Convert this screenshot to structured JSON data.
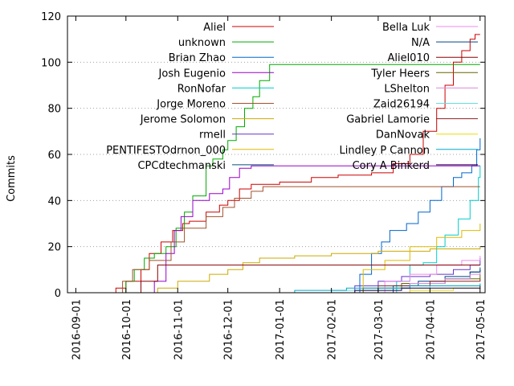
{
  "chart_data": {
    "type": "line",
    "title": "",
    "xlabel": "",
    "ylabel": "Commits",
    "ylim": [
      0,
      120
    ],
    "yticks": [
      "0",
      "20",
      "40",
      "60",
      "80",
      "100",
      "120"
    ],
    "xlim": [
      "2016-08-27",
      "2017-05-04"
    ],
    "xticks": [
      "2016-09-01",
      "2016-10-01",
      "2016-11-01",
      "2016-12-01",
      "2017-01-01",
      "2017-02-01",
      "2017-03-01",
      "2017-04-01",
      "2017-05-01"
    ],
    "grid": "horizontal-dotted",
    "legend_position": "top",
    "series": [
      {
        "name": "Aliel",
        "color": "#cc0000",
        "points": [
          [
            "2016-09-20",
            0
          ],
          [
            "2016-09-25",
            2
          ],
          [
            "2016-10-01",
            5
          ],
          [
            "2016-10-10",
            10
          ],
          [
            "2016-10-15",
            17
          ],
          [
            "2016-10-22",
            22
          ],
          [
            "2016-10-29",
            27
          ],
          [
            "2016-11-04",
            30
          ],
          [
            "2016-11-08",
            31
          ],
          [
            "2016-11-18",
            35
          ],
          [
            "2016-11-26",
            38
          ],
          [
            "2016-12-01",
            40
          ],
          [
            "2016-12-08",
            45
          ],
          [
            "2016-12-15",
            47
          ],
          [
            "2016-12-20",
            47
          ],
          [
            "2017-01-01",
            48
          ],
          [
            "2017-01-20",
            50
          ],
          [
            "2017-02-05",
            51
          ],
          [
            "2017-02-25",
            52
          ],
          [
            "2017-03-10",
            56
          ],
          [
            "2017-03-20",
            60
          ],
          [
            "2017-03-28",
            70
          ],
          [
            "2017-04-05",
            80
          ],
          [
            "2017-04-10",
            90
          ],
          [
            "2017-04-15",
            100
          ],
          [
            "2017-04-20",
            105
          ],
          [
            "2017-04-25",
            110
          ],
          [
            "2017-04-28",
            112
          ],
          [
            "2017-05-01",
            112
          ]
        ]
      },
      {
        "name": "unknown",
        "color": "#00aa00",
        "points": [
          [
            "2016-09-25",
            0
          ],
          [
            "2016-10-01",
            5
          ],
          [
            "2016-10-06",
            10
          ],
          [
            "2016-10-12",
            15
          ],
          [
            "2016-10-18",
            17
          ],
          [
            "2016-10-25",
            20
          ],
          [
            "2016-10-31",
            28
          ],
          [
            "2016-11-05",
            35
          ],
          [
            "2016-11-10",
            42
          ],
          [
            "2016-11-18",
            55
          ],
          [
            "2016-11-22",
            58
          ],
          [
            "2016-11-28",
            62
          ],
          [
            "2016-12-01",
            66
          ],
          [
            "2016-12-06",
            72
          ],
          [
            "2016-12-11",
            80
          ],
          [
            "2016-12-16",
            85
          ],
          [
            "2016-12-20",
            92
          ],
          [
            "2016-12-26",
            99
          ],
          [
            "2017-05-01",
            99
          ]
        ]
      },
      {
        "name": "Brian Zhao",
        "color": "#0066cc",
        "points": [
          [
            "2017-02-12",
            0
          ],
          [
            "2017-02-18",
            8
          ],
          [
            "2017-02-25",
            17
          ],
          [
            "2017-03-03",
            22
          ],
          [
            "2017-03-08",
            27
          ],
          [
            "2017-03-18",
            30
          ],
          [
            "2017-03-25",
            35
          ],
          [
            "2017-04-01",
            40
          ],
          [
            "2017-04-08",
            46
          ],
          [
            "2017-04-15",
            50
          ],
          [
            "2017-04-20",
            52
          ],
          [
            "2017-04-26",
            55
          ],
          [
            "2017-04-29",
            62
          ],
          [
            "2017-05-01",
            67
          ]
        ]
      },
      {
        "name": "Josh Eugenio",
        "color": "#9900cc",
        "points": [
          [
            "2016-10-10",
            0
          ],
          [
            "2016-10-18",
            5
          ],
          [
            "2016-10-25",
            17
          ],
          [
            "2016-10-30",
            27
          ],
          [
            "2016-11-03",
            33
          ],
          [
            "2016-11-10",
            40
          ],
          [
            "2016-11-20",
            43
          ],
          [
            "2016-11-28",
            45
          ],
          [
            "2016-12-02",
            50
          ],
          [
            "2016-12-08",
            54
          ],
          [
            "2016-12-15",
            55
          ],
          [
            "2017-05-01",
            55
          ]
        ]
      },
      {
        "name": "RonNofar",
        "color": "#00cccc",
        "points": [
          [
            "2017-03-08",
            0
          ],
          [
            "2017-03-12",
            5
          ],
          [
            "2017-03-20",
            12
          ],
          [
            "2017-03-28",
            13
          ],
          [
            "2017-04-05",
            20
          ],
          [
            "2017-04-10",
            25
          ],
          [
            "2017-04-18",
            32
          ],
          [
            "2017-04-25",
            40
          ],
          [
            "2017-04-30",
            50
          ],
          [
            "2017-05-01",
            55
          ]
        ]
      },
      {
        "name": "Jorge Moreno",
        "color": "#a0522d",
        "points": [
          [
            "2016-09-22",
            0
          ],
          [
            "2016-09-29",
            5
          ],
          [
            "2016-10-05",
            10
          ],
          [
            "2016-10-15",
            14
          ],
          [
            "2016-10-28",
            22
          ],
          [
            "2016-11-05",
            28
          ],
          [
            "2016-11-18",
            33
          ],
          [
            "2016-11-28",
            37
          ],
          [
            "2016-12-05",
            41
          ],
          [
            "2016-12-15",
            44
          ],
          [
            "2016-12-22",
            46
          ],
          [
            "2017-05-01",
            46
          ]
        ]
      },
      {
        "name": "Jerome Solomon",
        "color": "#ccaa00",
        "points": [
          [
            "2016-10-05",
            0
          ],
          [
            "2016-10-20",
            2
          ],
          [
            "2016-11-01",
            5
          ],
          [
            "2016-11-20",
            8
          ],
          [
            "2016-12-01",
            10
          ],
          [
            "2016-12-10",
            13
          ],
          [
            "2016-12-20",
            15
          ],
          [
            "2017-01-10",
            16
          ],
          [
            "2017-02-01",
            17
          ],
          [
            "2017-03-01",
            18
          ],
          [
            "2017-04-01",
            19
          ],
          [
            "2017-05-01",
            20
          ]
        ]
      },
      {
        "name": "rmell",
        "color": "#6633cc",
        "points": [
          [
            "2017-02-05",
            0
          ],
          [
            "2017-02-15",
            3
          ],
          [
            "2017-03-01",
            5
          ],
          [
            "2017-03-15",
            7
          ],
          [
            "2017-04-01",
            8
          ],
          [
            "2017-04-15",
            10
          ],
          [
            "2017-04-25",
            12
          ],
          [
            "2017-05-01",
            15
          ]
        ]
      },
      {
        "name": "PENTIFESTOdrnon_000",
        "color": "#ddbb00",
        "points": [
          [
            "2017-02-10",
            0
          ],
          [
            "2017-02-20",
            10
          ],
          [
            "2017-03-05",
            14
          ],
          [
            "2017-03-20",
            20
          ],
          [
            "2017-04-05",
            24
          ],
          [
            "2017-04-20",
            27
          ],
          [
            "2017-05-01",
            30
          ]
        ]
      },
      {
        "name": "CPCdtechmanski",
        "color": "#005577",
        "points": [
          [
            "2017-02-15",
            0
          ],
          [
            "2017-03-01",
            2
          ],
          [
            "2017-03-20",
            4
          ],
          [
            "2017-04-10",
            6
          ],
          [
            "2017-04-25",
            9
          ],
          [
            "2017-05-01",
            11
          ]
        ]
      },
      {
        "name": "Bella Luk",
        "color": "#ee88ee",
        "points": [
          [
            "2017-02-20",
            0
          ],
          [
            "2017-03-05",
            5
          ],
          [
            "2017-03-20",
            8
          ],
          [
            "2017-04-05",
            12
          ],
          [
            "2017-04-20",
            14
          ],
          [
            "2017-05-01",
            16
          ]
        ]
      },
      {
        "name": "N/A",
        "color": "#004488",
        "points": [
          [
            "2017-02-25",
            0
          ],
          [
            "2017-03-10",
            3
          ],
          [
            "2017-03-25",
            5
          ],
          [
            "2017-04-10",
            7
          ],
          [
            "2017-04-25",
            9
          ],
          [
            "2017-05-01",
            10
          ]
        ]
      },
      {
        "name": "Aliel010",
        "color": "#880000",
        "points": [
          [
            "2016-09-25",
            0
          ],
          [
            "2016-10-10",
            5
          ],
          [
            "2016-10-20",
            12
          ],
          [
            "2017-05-01",
            12
          ]
        ]
      },
      {
        "name": "Tyler Heers",
        "color": "#666600",
        "points": [
          [
            "2017-02-01",
            0
          ],
          [
            "2017-02-20",
            2
          ],
          [
            "2017-03-15",
            4
          ],
          [
            "2017-04-10",
            6
          ],
          [
            "2017-05-01",
            8
          ]
        ]
      },
      {
        "name": "LShelton",
        "color": "#dd88dd",
        "points": [
          [
            "2017-03-01",
            0
          ],
          [
            "2017-03-20",
            4
          ],
          [
            "2017-04-10",
            6
          ],
          [
            "2017-04-25",
            8
          ],
          [
            "2017-05-01",
            9
          ]
        ]
      },
      {
        "name": "Zaid26194",
        "color": "#66dddd",
        "points": [
          [
            "2017-01-01",
            0
          ],
          [
            "2017-02-01",
            1
          ],
          [
            "2017-03-01",
            2
          ],
          [
            "2017-04-01",
            3
          ],
          [
            "2017-05-01",
            4
          ]
        ]
      },
      {
        "name": "Gabriel Lamorie",
        "color": "#882222",
        "points": [
          [
            "2017-02-05",
            0
          ],
          [
            "2017-03-01",
            3
          ],
          [
            "2017-04-01",
            5
          ],
          [
            "2017-05-01",
            6
          ]
        ]
      },
      {
        "name": "DanNovak",
        "color": "#eedd00",
        "points": [
          [
            "2017-03-01",
            0
          ],
          [
            "2017-03-20",
            1
          ],
          [
            "2017-04-15",
            2
          ],
          [
            "2017-05-01",
            3
          ]
        ]
      },
      {
        "name": "Lindley P Cannon",
        "color": "#00aacc",
        "points": [
          [
            "2016-12-10",
            0
          ],
          [
            "2017-01-10",
            1
          ],
          [
            "2017-02-10",
            2
          ],
          [
            "2017-03-20",
            3
          ],
          [
            "2017-05-01",
            4
          ]
        ]
      },
      {
        "name": "Cory A Binkerd",
        "color": "#220044",
        "points": [
          [
            "2017-01-15",
            0
          ],
          [
            "2017-02-15",
            1
          ],
          [
            "2017-03-15",
            2
          ],
          [
            "2017-04-15",
            2
          ],
          [
            "2017-05-01",
            3
          ]
        ]
      }
    ]
  }
}
